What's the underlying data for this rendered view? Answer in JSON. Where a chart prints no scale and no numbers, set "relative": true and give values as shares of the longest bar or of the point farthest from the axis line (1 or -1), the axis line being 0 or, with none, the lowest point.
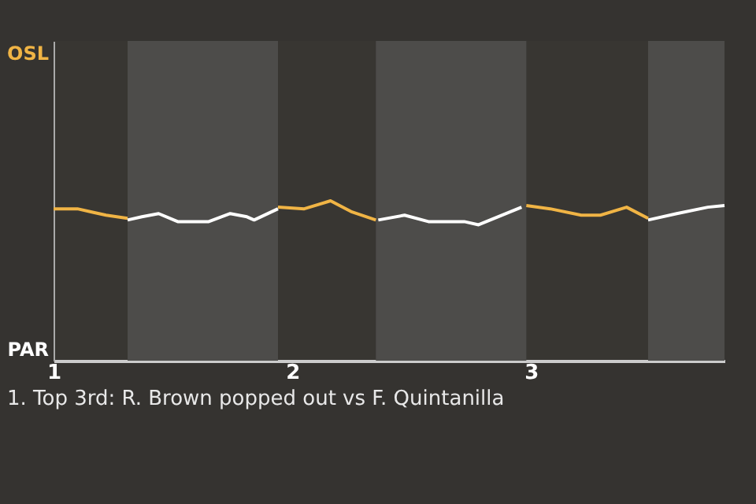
{
  "chart_data": {
    "type": "line",
    "relative": true,
    "annotations": [
      "OSL",
      "PAR",
      "1. Top 3rd: R. Brown popped out vs F. Quintanilla"
    ],
    "xlim": [
      1,
      3.81
    ],
    "xticks": [
      1,
      2,
      3
    ],
    "marker": "none",
    "line_style": "solid",
    "bands": [
      {
        "axis": "x",
        "from": 1.31,
        "to": 1.94,
        "color": "#4d4c4a"
      },
      {
        "axis": "x",
        "from": 2.35,
        "to": 2.98,
        "color": "#4d4c4a"
      },
      {
        "axis": "x",
        "from": 3.49,
        "to": 3.81,
        "color": "#4d4c4a"
      }
    ],
    "series": [
      {
        "color": "#f0b445",
        "x": [
          1.0,
          1.1,
          1.16,
          1.22,
          1.31,
          1.6,
          1.94,
          2.05,
          2.16,
          2.25,
          2.35,
          2.6,
          2.98,
          3.08,
          3.21,
          3.29,
          3.4,
          3.49
        ],
        "values": [
          0.95,
          0.95,
          0.93,
          0.91,
          0.89,
          null,
          0.96,
          0.95,
          1,
          0.93,
          0.88,
          null,
          0.97,
          0.95,
          0.91,
          0.91,
          0.96,
          0.89
        ]
      },
      {
        "color": "#ffffff",
        "x": [
          1.31,
          1.37,
          1.44,
          1.52,
          1.65,
          1.74,
          1.81,
          1.84,
          1.94,
          2.1,
          2.36,
          2.47,
          2.57,
          2.72,
          2.78,
          2.96,
          3.2,
          3.49,
          3.61,
          3.74,
          3.81
        ],
        "values": [
          0.88,
          0.9,
          0.92,
          0.87,
          0.87,
          0.92,
          0.9,
          0.88,
          0.95,
          null,
          0.88,
          0.91,
          0.87,
          0.87,
          0.85,
          0.96,
          null,
          0.88,
          0.92,
          0.96,
          0.97
        ]
      }
    ]
  }
}
